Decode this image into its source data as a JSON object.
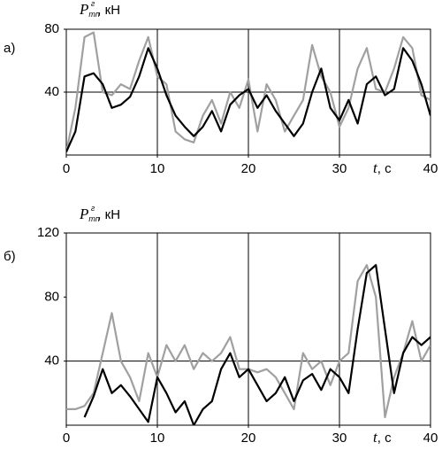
{
  "chart_data": [
    {
      "type": "line",
      "panel": "а)",
      "ylabel": {
        "symbol": "P",
        "subscript": "тп",
        "superscript": "г",
        "unit": ", кН"
      },
      "xlabel": {
        "symbol": "t",
        "unit": ", с"
      },
      "x": [
        0,
        1,
        2,
        3,
        4,
        5,
        6,
        7,
        8,
        9,
        10,
        11,
        12,
        13,
        14,
        15,
        16,
        17,
        18,
        19,
        20,
        21,
        22,
        23,
        24,
        25,
        26,
        27,
        28,
        29,
        30,
        31,
        32,
        33,
        34,
        35,
        36,
        37,
        38,
        39,
        40
      ],
      "series": [
        {
          "color": "#a0a0a0",
          "values": [
            2,
            30,
            75,
            78,
            40,
            38,
            45,
            42,
            60,
            75,
            50,
            45,
            15,
            10,
            8,
            25,
            35,
            20,
            40,
            30,
            48,
            15,
            45,
            35,
            15,
            25,
            35,
            70,
            50,
            40,
            18,
            30,
            55,
            68,
            42,
            40,
            55,
            75,
            68,
            38,
            35
          ]
        },
        {
          "color": "#000000",
          "values": [
            2,
            15,
            50,
            52,
            45,
            30,
            32,
            37,
            50,
            68,
            55,
            38,
            25,
            18,
            12,
            18,
            28,
            15,
            32,
            38,
            42,
            30,
            38,
            28,
            20,
            12,
            20,
            40,
            55,
            30,
            22,
            35,
            20,
            45,
            50,
            38,
            42,
            68,
            60,
            45,
            25
          ]
        }
      ],
      "xlim": [
        0,
        40
      ],
      "xticks": [
        0,
        10,
        20,
        30,
        40
      ],
      "ylim": [
        0,
        80
      ],
      "yticks": [
        40,
        80
      ],
      "xgrid": [
        10,
        20,
        30
      ],
      "ygrid": [
        40
      ]
    },
    {
      "type": "line",
      "panel": "б)",
      "ylabel": {
        "symbol": "P",
        "subscript": "тп",
        "superscript": "г",
        "unit": ", кН"
      },
      "xlabel": {
        "symbol": "t",
        "unit": ", с"
      },
      "x": [
        0,
        1,
        2,
        3,
        4,
        5,
        6,
        7,
        8,
        9,
        10,
        11,
        12,
        13,
        14,
        15,
        16,
        17,
        18,
        19,
        20,
        21,
        22,
        23,
        24,
        25,
        26,
        27,
        28,
        29,
        30,
        31,
        32,
        33,
        34,
        35,
        36,
        37,
        38,
        39,
        40
      ],
      "series": [
        {
          "color": "#a0a0a0",
          "values": [
            10,
            10,
            12,
            20,
            45,
            70,
            40,
            30,
            15,
            45,
            30,
            50,
            40,
            50,
            35,
            45,
            40,
            45,
            55,
            35,
            35,
            33,
            35,
            30,
            20,
            10,
            45,
            35,
            40,
            25,
            40,
            45,
            90,
            100,
            80,
            5,
            30,
            45,
            65,
            40,
            50
          ]
        },
        {
          "color": "#000000",
          "values": [
            null,
            null,
            5,
            18,
            35,
            20,
            25,
            18,
            10,
            2,
            30,
            20,
            8,
            15,
            0,
            10,
            15,
            35,
            45,
            30,
            35,
            25,
            15,
            20,
            30,
            15,
            28,
            32,
            22,
            35,
            30,
            20,
            60,
            95,
            100,
            60,
            20,
            45,
            55,
            50,
            55
          ]
        }
      ],
      "xlim": [
        0,
        40
      ],
      "xticks": [
        0,
        10,
        20,
        30,
        40
      ],
      "ylim": [
        0,
        120
      ],
      "yticks": [
        40,
        80,
        120
      ],
      "xgrid": [
        10,
        20,
        30
      ],
      "ygrid": [
        40
      ]
    }
  ]
}
